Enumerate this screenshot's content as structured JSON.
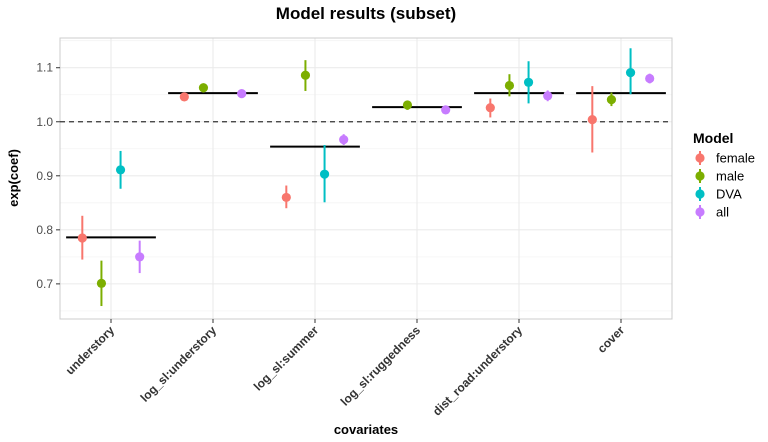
{
  "chart_data": {
    "type": "scatter",
    "title": "Model results (subset)",
    "xlabel": "covariates",
    "ylabel": "exp(coef)",
    "ylim": [
      0.635,
      1.155
    ],
    "yticks": [
      0.7,
      0.8,
      0.9,
      1.0,
      1.1
    ],
    "ytick_labels": [
      "0.7",
      "0.8",
      "0.9",
      "1.0",
      "1.1"
    ],
    "reference_line": 1.0,
    "categories": [
      "understory",
      "log_sl:understory",
      "log_sl:summer",
      "log_sl:ruggedness",
      "dist_road:understory",
      "cover"
    ],
    "pooled_estimates": [
      0.786,
      1.053,
      0.954,
      1.027,
      1.053,
      1.053
    ],
    "legend_title": "Model",
    "legend_position": "right",
    "series": [
      {
        "name": "female",
        "color": "#F8766D",
        "values": [
          0.785,
          1.046,
          0.86,
          null,
          1.026,
          1.004
        ],
        "lower": [
          0.745,
          1.04,
          0.84,
          null,
          1.008,
          0.943
        ],
        "upper": [
          0.826,
          1.052,
          0.882,
          null,
          1.043,
          1.066
        ]
      },
      {
        "name": "male",
        "color": "#7CAE00",
        "values": [
          0.701,
          1.063,
          1.086,
          1.031,
          1.067,
          1.041
        ],
        "lower": [
          0.659,
          1.054,
          1.057,
          1.022,
          1.047,
          1.029
        ],
        "upper": [
          0.743,
          1.071,
          1.114,
          1.039,
          1.088,
          1.054
        ]
      },
      {
        "name": "DVA",
        "color": "#00BFC4",
        "values": [
          0.911,
          null,
          0.903,
          null,
          1.073,
          1.091
        ],
        "lower": [
          0.876,
          null,
          0.851,
          null,
          1.034,
          1.051
        ],
        "upper": [
          0.946,
          null,
          0.957,
          null,
          1.112,
          1.136
        ]
      },
      {
        "name": "all",
        "color": "#C77CFF",
        "values": [
          0.75,
          1.052,
          0.967,
          1.022,
          1.048,
          1.08
        ],
        "lower": [
          0.72,
          1.048,
          0.957,
          1.018,
          1.038,
          1.071
        ],
        "upper": [
          0.78,
          1.056,
          0.977,
          1.026,
          1.058,
          1.089
        ]
      }
    ]
  }
}
